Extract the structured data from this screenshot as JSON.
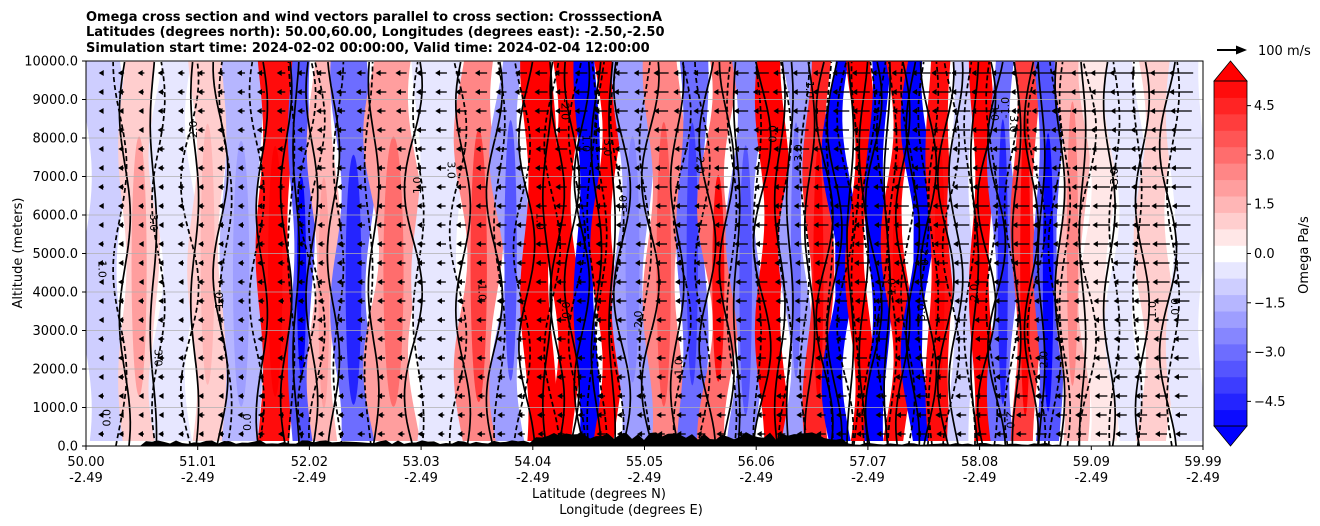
{
  "chart_data": {
    "type": "heatmap",
    "title_lines": [
      "Omega cross section and wind vectors parallel to cross section: CrosssectionA",
      "Latitudes (degrees north): 50.00,60.00, Longitudes (degrees east): -2.50,-2.50",
      "Simulation start time: 2024-02-02 00:00:00, Valid time: 2024-02-04 12:00:00"
    ],
    "ylabel": "Altitude (meters)",
    "xlabel": "Latitude (degrees N)",
    "xlabel2": "Longitude (degrees E)",
    "ylim": [
      0,
      10000
    ],
    "yticks": [
      "0.0",
      "1000.0",
      "2000.0",
      "3000.0",
      "4000.0",
      "5000.0",
      "6000.0",
      "7000.0",
      "8000.0",
      "9000.0",
      "10000.0"
    ],
    "xlim": [
      50.0,
      59.99
    ],
    "xticks": [
      {
        "lat": "50.00",
        "lon": "-2.49"
      },
      {
        "lat": "51.01",
        "lon": "-2.49"
      },
      {
        "lat": "52.02",
        "lon": "-2.49"
      },
      {
        "lat": "53.03",
        "lon": "-2.49"
      },
      {
        "lat": "54.04",
        "lon": "-2.49"
      },
      {
        "lat": "55.05",
        "lon": "-2.49"
      },
      {
        "lat": "56.06",
        "lon": "-2.49"
      },
      {
        "lat": "57.07",
        "lon": "-2.49"
      },
      {
        "lat": "58.08",
        "lon": "-2.49"
      },
      {
        "lat": "59.09",
        "lon": "-2.49"
      },
      {
        "lat": "59.99",
        "lon": "-2.49"
      }
    ],
    "grid": "horizontal",
    "colorbar": {
      "label": "Omega Pa/s",
      "min": -5.25,
      "max": 5.25,
      "step": 0.5,
      "ticks": [
        "4.5",
        "3.0",
        "1.5",
        "0.0",
        "−1.5",
        "−3.0",
        "−4.5"
      ],
      "tick_values": [
        4.5,
        3.0,
        1.5,
        0.0,
        -1.5,
        -3.0,
        -4.5
      ],
      "extend": "both"
    },
    "quiver_key": {
      "label": "100 m/s",
      "speed": 100
    },
    "contour_labels": [
      "0.0",
      "1.0",
      "-1.0",
      "2.0",
      "-2.0",
      "3.0"
    ],
    "omega_bands": [
      {
        "lat": 50.2,
        "omega": -0.8
      },
      {
        "lat": 50.45,
        "omega": 1.2
      },
      {
        "lat": 50.8,
        "omega": -0.6
      },
      {
        "lat": 51.1,
        "omega": 1.0
      },
      {
        "lat": 51.35,
        "omega": -1.5
      },
      {
        "lat": 51.75,
        "omega": 5.0
      },
      {
        "lat": 51.92,
        "omega": -3.5
      },
      {
        "lat": 52.12,
        "omega": 1.4
      },
      {
        "lat": 52.35,
        "omega": -3.0
      },
      {
        "lat": 52.75,
        "omega": 2.0
      },
      {
        "lat": 53.15,
        "omega": -0.6
      },
      {
        "lat": 53.55,
        "omega": 2.5
      },
      {
        "lat": 53.8,
        "omega": -2.2
      },
      {
        "lat": 54.04,
        "omega": 5.5
      },
      {
        "lat": 54.3,
        "omega": 5.5
      },
      {
        "lat": 54.48,
        "omega": -5.5
      },
      {
        "lat": 54.65,
        "omega": 5.5
      },
      {
        "lat": 54.85,
        "omega": -1.8
      },
      {
        "lat": 55.2,
        "omega": 2.4
      },
      {
        "lat": 55.42,
        "omega": -2.8
      },
      {
        "lat": 55.65,
        "omega": 3.2
      },
      {
        "lat": 55.9,
        "omega": -2.5
      },
      {
        "lat": 56.15,
        "omega": 5.5
      },
      {
        "lat": 56.35,
        "omega": -2.0
      },
      {
        "lat": 56.55,
        "omega": 4.5
      },
      {
        "lat": 56.75,
        "omega": -5.5
      },
      {
        "lat": 56.92,
        "omega": 5.5
      },
      {
        "lat": 57.08,
        "omega": -5.5
      },
      {
        "lat": 57.25,
        "omega": 5.0
      },
      {
        "lat": 57.45,
        "omega": -5.5
      },
      {
        "lat": 57.62,
        "omega": 5.0
      },
      {
        "lat": 57.85,
        "omega": -0.8
      },
      {
        "lat": 58.0,
        "omega": 5.5
      },
      {
        "lat": 58.2,
        "omega": -3.0
      },
      {
        "lat": 58.4,
        "omega": 4.0
      },
      {
        "lat": 58.6,
        "omega": -3.5
      },
      {
        "lat": 58.82,
        "omega": 1.5
      },
      {
        "lat": 59.05,
        "omega": 0.4
      },
      {
        "lat": 59.3,
        "omega": -0.4
      },
      {
        "lat": 59.55,
        "omega": 0.9
      },
      {
        "lat": 59.85,
        "omega": -0.3
      }
    ]
  }
}
